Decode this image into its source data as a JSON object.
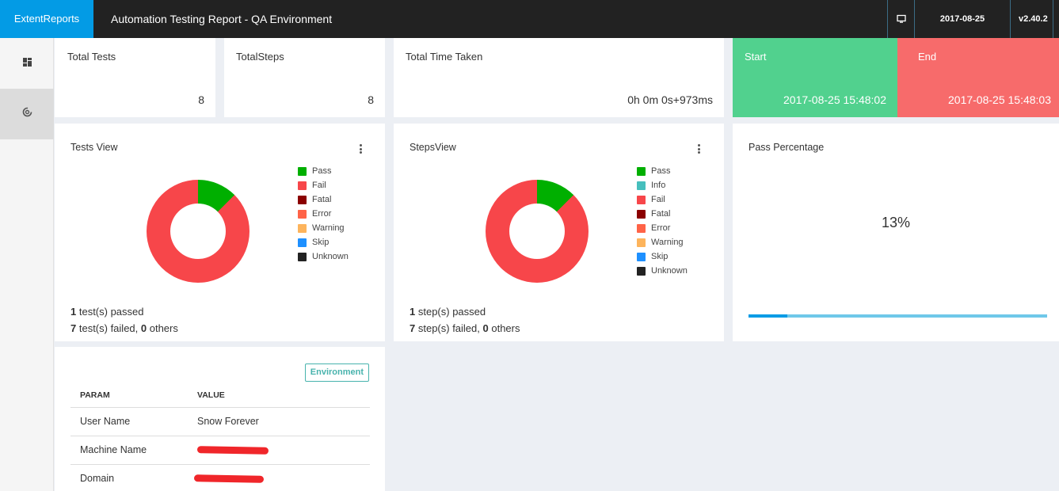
{
  "header": {
    "brand": "ExtentReports",
    "title": "Automation Testing Report - QA Environment",
    "date": "2017-08-25 15:48:02",
    "version": "v2.40.2"
  },
  "sidebar": {
    "items": [
      {
        "icon": "dashboard-icon",
        "active": false
      },
      {
        "icon": "spinner-icon",
        "active": true
      }
    ]
  },
  "stats": {
    "total_tests": {
      "label": "Total Tests",
      "value": "8"
    },
    "total_steps": {
      "label": "TotalSteps",
      "value": "8"
    },
    "time_taken": {
      "label": "Total Time Taken",
      "value": "0h 0m 0s+973ms"
    },
    "start": {
      "label": "Start",
      "value": "2017-08-25 15:48:02"
    },
    "end": {
      "label": "End",
      "value": "2017-08-25 15:48:03"
    }
  },
  "tests_view": {
    "title": "Tests View",
    "legend": [
      "Pass",
      "Fail",
      "Fatal",
      "Error",
      "Warning",
      "Skip",
      "Unknown"
    ],
    "passed_count": "1",
    "passed_text": " test(s) passed",
    "failed_count": "7",
    "failed_text": " test(s) failed, ",
    "others_count": "0",
    "others_text": " others"
  },
  "steps_view": {
    "title": "StepsView",
    "legend": [
      "Pass",
      "Info",
      "Fail",
      "Fatal",
      "Error",
      "Warning",
      "Skip",
      "Unknown"
    ],
    "passed_count": "1",
    "passed_text": " step(s) passed",
    "failed_count": "7",
    "failed_text": " step(s) failed, ",
    "others_count": "0",
    "others_text": " others"
  },
  "pass_percentage": {
    "title": "Pass Percentage",
    "value": "13%",
    "fraction": 0.13
  },
  "environment": {
    "button": "Environment",
    "headers": [
      "PARAM",
      "VALUE"
    ],
    "rows": [
      {
        "param": "User Name",
        "value": "Snow Forever"
      },
      {
        "param": "Machine Name",
        "value": ""
      },
      {
        "param": "Domain",
        "value": ""
      }
    ]
  },
  "colors": {
    "pass": "#00af00",
    "info": "#46bfbd",
    "fail": "#f7464a",
    "fatal": "#8b0000",
    "error": "#ff6347",
    "warning": "#fdb45c",
    "skip": "#1e90ff",
    "unknown": "#222222"
  },
  "chart_data": [
    {
      "type": "pie",
      "categories": [
        "Pass",
        "Fail",
        "Fatal",
        "Error",
        "Warning",
        "Skip",
        "Unknown"
      ],
      "values": [
        1,
        7,
        0,
        0,
        0,
        0,
        0
      ]
    },
    {
      "type": "pie",
      "categories": [
        "Pass",
        "Info",
        "Fail",
        "Fatal",
        "Error",
        "Warning",
        "Skip",
        "Unknown"
      ],
      "values": [
        1,
        0,
        7,
        0,
        0,
        0,
        0,
        0
      ]
    }
  ]
}
